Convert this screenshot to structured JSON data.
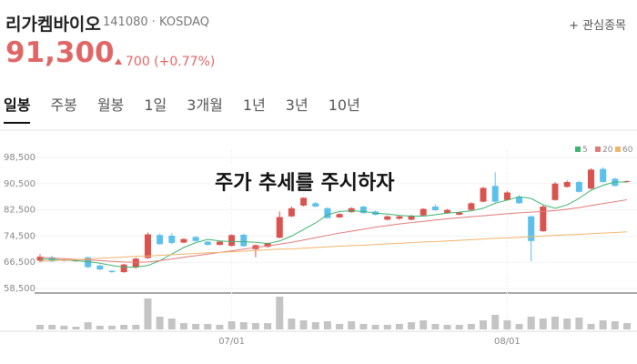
{
  "header": {
    "name": "리가켐바이오",
    "code": "141080",
    "market": "KOSDAQ",
    "watch": "관심종목",
    "price": "91,300",
    "change": "700 (+0.77%)"
  },
  "tabs": [
    "일봉",
    "주봉",
    "월봉",
    "1일",
    "3개월",
    "1년",
    "3년",
    "10년"
  ],
  "overlay": "주가 추세를 주시하자",
  "chart_data": {
    "type": "candlestick",
    "categories": [
      null,
      null,
      null,
      null,
      null,
      null,
      null,
      null,
      null,
      null,
      null,
      null,
      null,
      null,
      null,
      null,
      "07/01",
      null,
      null,
      null,
      null,
      null,
      null,
      null,
      null,
      null,
      null,
      null,
      null,
      null,
      null,
      null,
      null,
      null,
      null,
      null,
      null,
      null,
      null,
      "08/01",
      null,
      null,
      null,
      null,
      null,
      null,
      null,
      null,
      null,
      null
    ],
    "open": [
      67000,
      68000,
      67000,
      67000,
      68000,
      65500,
      63900,
      63500,
      65000,
      67800,
      74800,
      74600,
      72500,
      74200,
      72800,
      71800,
      71500,
      74900,
      70500,
      71200,
      74000,
      80500,
      83800,
      84500,
      83000,
      80200,
      81800,
      83500,
      82000,
      79500,
      79800,
      79500,
      80800,
      83500,
      81500,
      81000,
      82500,
      85000,
      89800,
      85500,
      86500,
      80500,
      76000,
      85500,
      89500,
      91000,
      89000,
      95000,
      92000,
      91000
    ],
    "high": [
      69000,
      68500,
      67500,
      67300,
      68300,
      65800,
      64100,
      66000,
      67900,
      75600,
      75200,
      75400,
      73800,
      74500,
      73000,
      73000,
      75000,
      75200,
      71900,
      72500,
      82000,
      83500,
      88000,
      85000,
      83300,
      81500,
      83300,
      83700,
      82300,
      80800,
      80800,
      81000,
      83000,
      84200,
      82800,
      82000,
      84800,
      89500,
      94000,
      88200,
      87000,
      80800,
      84000,
      91000,
      91500,
      91400,
      95200,
      95500,
      92300,
      91500
    ],
    "low": [
      66500,
      66500,
      66800,
      66700,
      64700,
      64100,
      63300,
      63300,
      64500,
      67500,
      71800,
      72000,
      72300,
      72800,
      71600,
      71600,
      71300,
      71200,
      68000,
      71000,
      73800,
      80300,
      83500,
      83300,
      79800,
      80000,
      81600,
      81300,
      80800,
      79300,
      79500,
      79300,
      80600,
      82200,
      81300,
      80800,
      82300,
      84800,
      84800,
      85300,
      84300,
      66800,
      75800,
      85300,
      89300,
      87800,
      88800,
      90800,
      89600,
      90800
    ],
    "close": [
      68200,
      66800,
      67300,
      67100,
      65000,
      64300,
      63500,
      65800,
      67600,
      75000,
      72000,
      72400,
      73600,
      73000,
      71800,
      72800,
      74800,
      71400,
      71700,
      72300,
      80300,
      83000,
      86200,
      83500,
      80000,
      81200,
      83000,
      81500,
      81000,
      80500,
      80500,
      80700,
      82800,
      82400,
      82500,
      81700,
      84500,
      89200,
      85000,
      87800,
      84500,
      73000,
      83500,
      90500,
      91000,
      88000,
      94800,
      91000,
      89800,
      91300
    ],
    "volume": [
      5,
      5,
      4,
      3,
      8,
      4,
      4,
      5,
      5,
      34,
      14,
      12,
      7,
      6,
      6,
      5,
      9,
      8,
      7,
      7,
      36,
      12,
      10,
      8,
      9,
      6,
      9,
      6,
      5,
      5,
      6,
      8,
      10,
      6,
      5,
      5,
      6,
      10,
      16,
      10,
      6,
      14,
      12,
      14,
      12,
      13,
      6,
      10,
      9,
      7
    ],
    "up_color": "#d9534f",
    "down_color": "#5bc0eb",
    "volume_color": "#c4c4c4",
    "moving_averages": [
      {
        "name": "5",
        "color": "#3cb371",
        "values": [
          67500,
          67400,
          67200,
          67000,
          66700,
          66200,
          65500,
          65000,
          65000,
          65500,
          67000,
          69000,
          71000,
          72500,
          73500,
          73000,
          72800,
          72800,
          72600,
          72200,
          73000,
          74500,
          76500,
          78500,
          81000,
          82000,
          82200,
          82000,
          81500,
          81200,
          80800,
          80600,
          80600,
          81000,
          81500,
          81800,
          82200,
          83000,
          84500,
          85500,
          86500,
          86000,
          84000,
          83000,
          84000,
          86000,
          88500,
          90000,
          91000,
          91000
        ]
      },
      {
        "name": "20",
        "color": "#e07a7a",
        "values": [
          68000,
          67800,
          67600,
          67400,
          67200,
          67000,
          66800,
          66600,
          66500,
          66600,
          67000,
          67500,
          68000,
          68500,
          69000,
          69500,
          70000,
          70500,
          71000,
          71500,
          72000,
          72600,
          73300,
          74000,
          74700,
          75400,
          76000,
          76600,
          77200,
          77700,
          78200,
          78600,
          79000,
          79400,
          79800,
          80100,
          80400,
          80700,
          81000,
          81300,
          81600,
          81800,
          82000,
          82300,
          82700,
          83200,
          83800,
          84400,
          85000,
          85600
        ]
      },
      {
        "name": "60",
        "color": "#f0b46a",
        "values": [
          66800,
          67000,
          67200,
          67300,
          67500,
          67700,
          67900,
          68100,
          68300,
          68400,
          68600,
          68800,
          69000,
          69200,
          69400,
          69500,
          69700,
          69900,
          70100,
          70300,
          70500,
          70600,
          70800,
          71000,
          71200,
          71400,
          71600,
          71700,
          71900,
          72100,
          72300,
          72500,
          72700,
          72800,
          73000,
          73200,
          73400,
          73600,
          73800,
          73900,
          74100,
          74300,
          74500,
          74700,
          74900,
          75000,
          75200,
          75400,
          75600,
          75800
        ]
      }
    ],
    "ylim": [
      58500,
      98500
    ],
    "yticks": [
      {
        "value": 58500,
        "label": "58,500"
      },
      {
        "value": 66500,
        "label": "66,500"
      },
      {
        "value": 74500,
        "label": "74,500"
      },
      {
        "value": 82500,
        "label": "82,500"
      },
      {
        "value": 90500,
        "label": "90,500"
      },
      {
        "value": 98500,
        "label": "98,500"
      }
    ]
  }
}
